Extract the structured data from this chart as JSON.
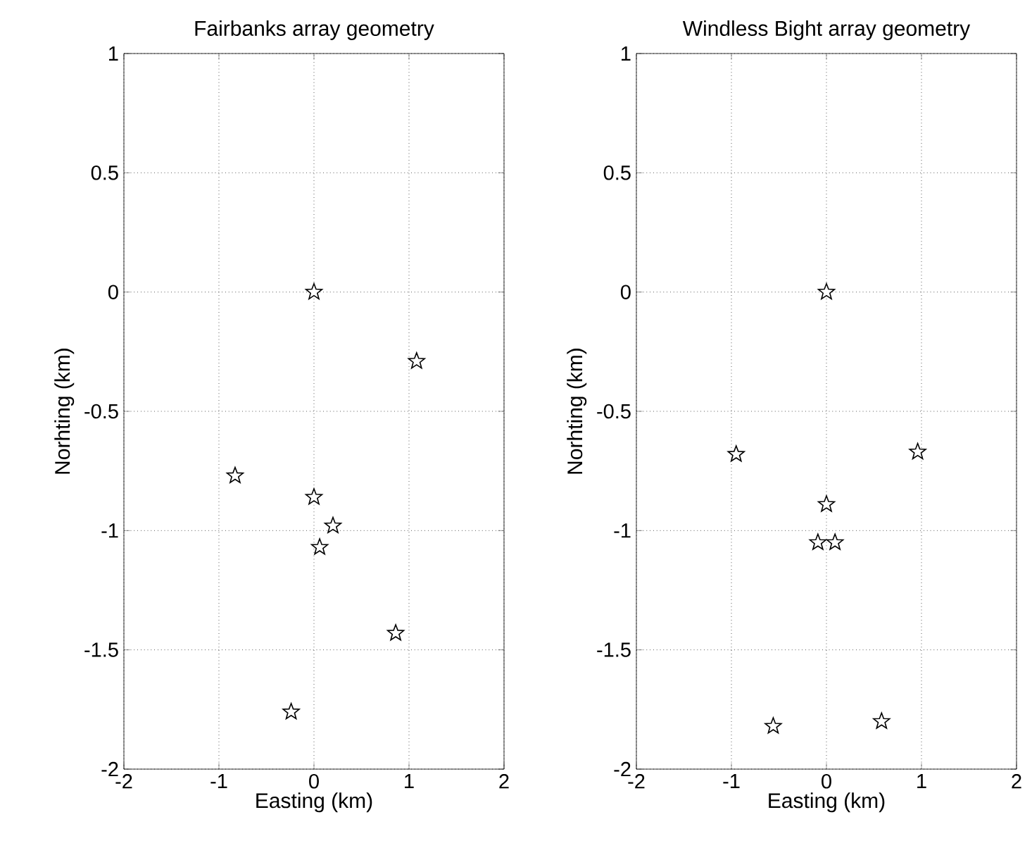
{
  "chart_data": [
    {
      "type": "scatter",
      "title": "Fairbanks array geometry",
      "xlabel": "Easting (km)",
      "ylabel": "Norhting (km)",
      "xlim": [
        -2,
        2
      ],
      "ylim": [
        -2,
        1
      ],
      "xticks": [
        -2,
        -1,
        0,
        1,
        2
      ],
      "yticks": [
        -2,
        -1.5,
        -1,
        -0.5,
        0,
        0.5,
        1
      ],
      "grid": true,
      "marker": "star",
      "series": [
        {
          "color": "#000000",
          "x": [
            0,
            1.08,
            -0.83,
            0,
            0.2,
            0.06,
            0.86,
            -0.24
          ],
          "values": [
            0,
            -0.29,
            -0.77,
            -0.86,
            -0.98,
            -1.07,
            -1.43,
            -1.76
          ]
        }
      ]
    },
    {
      "type": "scatter",
      "title": "Windless Bight array geometry",
      "xlabel": "Easting (km)",
      "ylabel": "Norhting (km)",
      "xlim": [
        -2,
        2
      ],
      "ylim": [
        -2,
        1
      ],
      "xticks": [
        -2,
        -1,
        0,
        1,
        2
      ],
      "yticks": [
        -2,
        -1.5,
        -1,
        -0.5,
        0,
        0.5,
        1
      ],
      "grid": true,
      "marker": "star",
      "series": [
        {
          "color": "#000000",
          "x": [
            0,
            -0.95,
            0.96,
            0,
            -0.09,
            0.09,
            -0.56,
            0.58
          ],
          "values": [
            0,
            -0.68,
            -0.67,
            -0.89,
            -1.05,
            -1.05,
            -1.82,
            -1.8
          ]
        }
      ]
    }
  ]
}
